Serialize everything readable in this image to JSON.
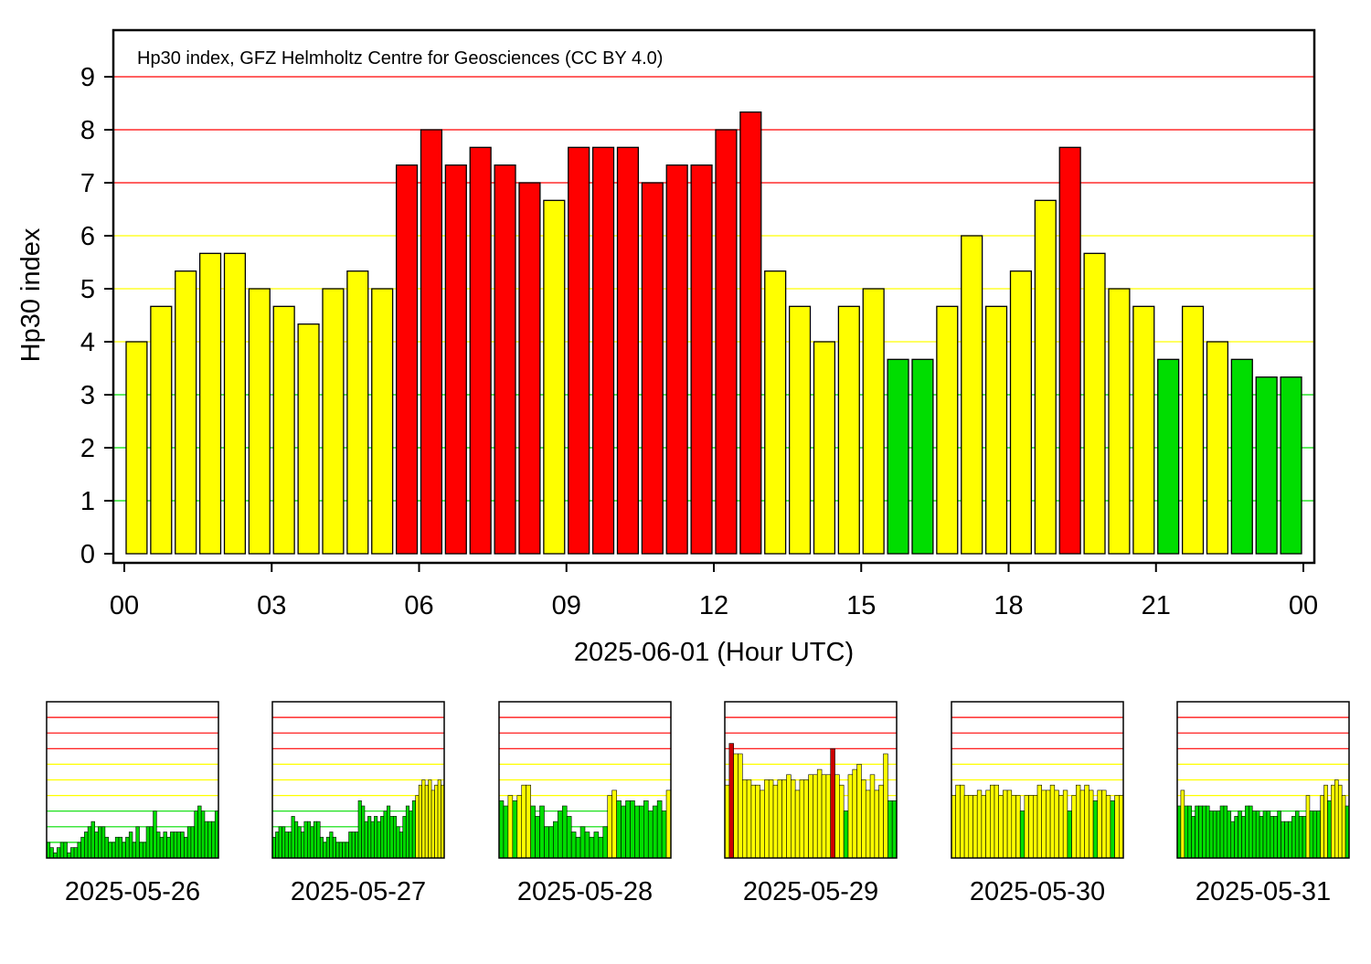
{
  "chart_data": {
    "type": "bar",
    "title": "Hp30 index, GFZ Helmholtz Centre for Geosciences (CC BY 4.0)",
    "ylabel": "Hp30 index",
    "xlabel": "2025-06-01 (Hour UTC)",
    "ylim": [
      0,
      9
    ],
    "yticks": [
      "0",
      "1",
      "2",
      "3",
      "4",
      "5",
      "6",
      "7",
      "8",
      "9"
    ],
    "xticks": [
      "00",
      "03",
      "06",
      "09",
      "12",
      "15",
      "18",
      "21",
      "00"
    ],
    "values": [
      4.0,
      4.667,
      5.333,
      5.667,
      5.667,
      5.0,
      4.667,
      4.333,
      5.0,
      5.333,
      5.0,
      7.333,
      8.0,
      7.333,
      7.667,
      7.333,
      7.0,
      6.667,
      7.667,
      7.667,
      7.667,
      7.0,
      7.333,
      7.333,
      8.0,
      8.333,
      5.333,
      4.667,
      4.0,
      4.667,
      5.0,
      3.667,
      3.667,
      4.667,
      6.0,
      4.667,
      5.333,
      6.667,
      7.667,
      5.667,
      5.0,
      4.667,
      3.667,
      4.667,
      4.0,
      3.667,
      3.333,
      3.333
    ],
    "color_scale": {
      "green": "#00dd00",
      "yellow": "#ffff00",
      "red": "#ff0000",
      "dark_red": "#cc0000"
    },
    "grid": true,
    "grid_lines": {
      "green": [
        1,
        2,
        3
      ],
      "yellow": [
        4,
        5,
        6
      ],
      "red": [
        7,
        8,
        9
      ]
    },
    "previous_days": [
      {
        "date": "2025-05-26",
        "values": [
          1.0,
          0.667,
          0.333,
          0.667,
          1.0,
          1.0,
          0.333,
          0.667,
          0.667,
          1.0,
          1.333,
          1.667,
          2.0,
          2.333,
          1.667,
          2.0,
          2.0,
          1.333,
          1.0,
          1.0,
          1.333,
          1.333,
          1.0,
          1.333,
          1.667,
          1.0,
          2.0,
          1.0,
          1.0,
          2.0,
          2.0,
          3.0,
          1.667,
          1.333,
          1.667,
          1.333,
          1.667,
          1.667,
          1.667,
          1.667,
          1.333,
          2.0,
          2.0,
          3.0,
          3.333,
          3.0,
          2.333,
          2.333,
          2.333,
          3.0
        ]
      },
      {
        "date": "2025-05-27",
        "values": [
          1.333,
          1.667,
          2.0,
          2.0,
          1.667,
          1.667,
          2.667,
          2.333,
          2.0,
          1.667,
          2.333,
          2.333,
          2.0,
          2.333,
          2.333,
          1.333,
          1.0,
          1.333,
          1.667,
          1.333,
          1.0,
          1.0,
          1.0,
          1.0,
          1.667,
          1.667,
          1.667,
          3.667,
          3.333,
          2.333,
          2.667,
          2.333,
          2.667,
          2.333,
          2.667,
          3.0,
          3.333,
          2.667,
          2.667,
          2.0,
          1.667,
          2.667,
          3.333,
          3.0,
          3.667,
          4.0,
          4.667,
          5.0,
          4.667,
          5.0,
          4.333,
          4.667,
          5.0,
          4.667
        ]
      },
      {
        "date": "2025-05-28",
        "values": [
          3.667,
          3.333,
          4.0,
          3.667,
          4.0,
          4.667,
          4.667,
          3.333,
          2.667,
          3.333,
          2.0,
          2.0,
          2.333,
          3.0,
          3.333,
          2.667,
          1.667,
          1.333,
          2.0,
          1.667,
          1.333,
          1.667,
          1.333,
          2.0,
          4.0,
          4.333,
          3.667,
          3.333,
          3.667,
          3.667,
          3.333,
          3.333,
          3.667,
          3.0,
          3.333,
          3.667,
          3.0,
          4.333
        ]
      },
      {
        "date": "2025-05-29",
        "values": [
          4.667,
          7.333,
          6.667,
          6.667,
          5.0,
          5.0,
          4.667,
          4.667,
          4.333,
          5.0,
          5.0,
          4.667,
          5.0,
          5.0,
          5.333,
          5.0,
          4.333,
          5.0,
          5.0,
          5.333,
          5.333,
          5.667,
          5.333,
          5.333,
          7.0,
          5.333,
          4.667,
          3.0,
          5.333,
          5.667,
          6.0,
          5.0,
          4.333,
          5.333,
          4.333,
          4.667,
          6.667,
          3.667,
          3.667
        ]
      },
      {
        "date": "2025-05-30",
        "values": [
          4.0,
          4.667,
          4.667,
          4.0,
          4.0,
          4.0,
          4.333,
          4.0,
          4.333,
          4.667,
          4.667,
          4.0,
          4.333,
          4.333,
          4.0,
          4.0,
          3.0,
          4.0,
          4.0,
          4.0,
          4.667,
          4.333,
          4.333,
          4.667,
          4.333,
          4.0,
          4.333,
          3.0,
          4.0,
          4.667,
          4.333,
          4.667,
          4.333,
          3.667,
          4.333,
          4.333,
          4.0,
          3.667,
          4.0,
          4.0
        ]
      },
      {
        "date": "2025-05-31",
        "values": [
          3.333,
          4.333,
          3.333,
          3.333,
          2.667,
          3.333,
          3.333,
          3.333,
          3.333,
          3.0,
          3.0,
          3.0,
          3.333,
          3.333,
          3.0,
          2.333,
          2.667,
          3.0,
          2.667,
          3.333,
          3.333,
          3.0,
          3.0,
          2.667,
          3.0,
          3.0,
          2.667,
          2.667,
          3.0,
          2.333,
          2.333,
          2.333,
          2.667,
          3.0,
          2.667,
          2.667,
          4.0,
          3.0,
          3.0,
          3.0,
          4.0,
          4.667,
          3.667,
          4.667,
          5.0,
          4.667,
          4.0,
          3.333
        ]
      }
    ]
  }
}
